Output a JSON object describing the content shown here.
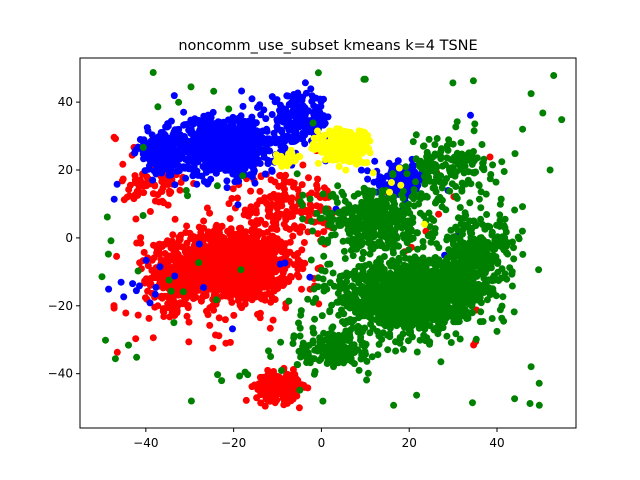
{
  "chart_data": {
    "type": "scatter",
    "title": "noncomm_use_subset kmeans k=4 TSNE",
    "xlabel": "",
    "ylabel": "",
    "xlim": [
      -55,
      58
    ],
    "ylim": [
      -56,
      53
    ],
    "xticks": [
      -40,
      -20,
      0,
      20,
      40
    ],
    "yticks": [
      -40,
      -20,
      0,
      20,
      40
    ],
    "grid": false,
    "legend": "none",
    "marker_size": 7,
    "clusters": [
      {
        "color": "#ff0000",
        "regions": [
          {
            "center": [
              -20,
              -8
            ],
            "spread": [
              11,
              9
            ],
            "count": 1200
          },
          {
            "center": [
              -33,
              -12
            ],
            "spread": [
              6,
              8
            ],
            "count": 260
          },
          {
            "center": [
              -10,
              -44
            ],
            "spread": [
              4,
              3.5
            ],
            "count": 220
          },
          {
            "center": [
              -8,
              10
            ],
            "spread": [
              10,
              8
            ],
            "count": 160
          },
          {
            "center": [
              -38,
              15
            ],
            "spread": [
              6,
              6
            ],
            "count": 70
          }
        ],
        "sparse": {
          "count": 60,
          "xlim": [
            -48,
            0
          ],
          "ylim": [
            -35,
            30
          ]
        }
      },
      {
        "color": "#ff0000",
        "regions": [],
        "sparse": {
          "count": 20,
          "xlim": [
            10,
            40
          ],
          "ylim": [
            -35,
            25
          ]
        }
      },
      {
        "color": "#0000ff",
        "regions": [
          {
            "center": [
              -22,
              27
            ],
            "spread": [
              10,
              7
            ],
            "count": 720
          },
          {
            "center": [
              -36,
              25
            ],
            "spread": [
              5,
              5
            ],
            "count": 180
          },
          {
            "center": [
              -5,
              35
            ],
            "spread": [
              6,
              6
            ],
            "count": 180
          },
          {
            "center": [
              18,
              17
            ],
            "spread": [
              5,
              4
            ],
            "count": 120
          }
        ],
        "sparse": {
          "count": 35,
          "xlim": [
            -50,
            35
          ],
          "ylim": [
            -30,
            50
          ]
        }
      },
      {
        "color": "#008000",
        "regions": [
          {
            "center": [
              20,
              -17
            ],
            "spread": [
              13,
              9
            ],
            "count": 1300
          },
          {
            "center": [
              12,
              5
            ],
            "spread": [
              10,
              7
            ],
            "count": 420
          },
          {
            "center": [
              35,
              -5
            ],
            "spread": [
              8,
              10
            ],
            "count": 300
          },
          {
            "center": [
              30,
              20
            ],
            "spread": [
              8,
              8
            ],
            "count": 160
          },
          {
            "center": [
              3,
              -33
            ],
            "spread": [
              8,
              5
            ],
            "count": 160
          }
        ],
        "sparse": {
          "count": 90,
          "xlim": [
            -50,
            55
          ],
          "ylim": [
            -50,
            50
          ]
        }
      },
      {
        "color": "#ffff00",
        "regions": [
          {
            "center": [
              5,
              27
            ],
            "spread": [
              5,
              4
            ],
            "count": 300
          },
          {
            "center": [
              -8,
              23
            ],
            "spread": [
              2,
              2
            ],
            "count": 30
          }
        ],
        "sparse": {
          "count": 6,
          "xlim": [
            10,
            25
          ],
          "ylim": [
            0,
            25
          ]
        }
      }
    ]
  }
}
